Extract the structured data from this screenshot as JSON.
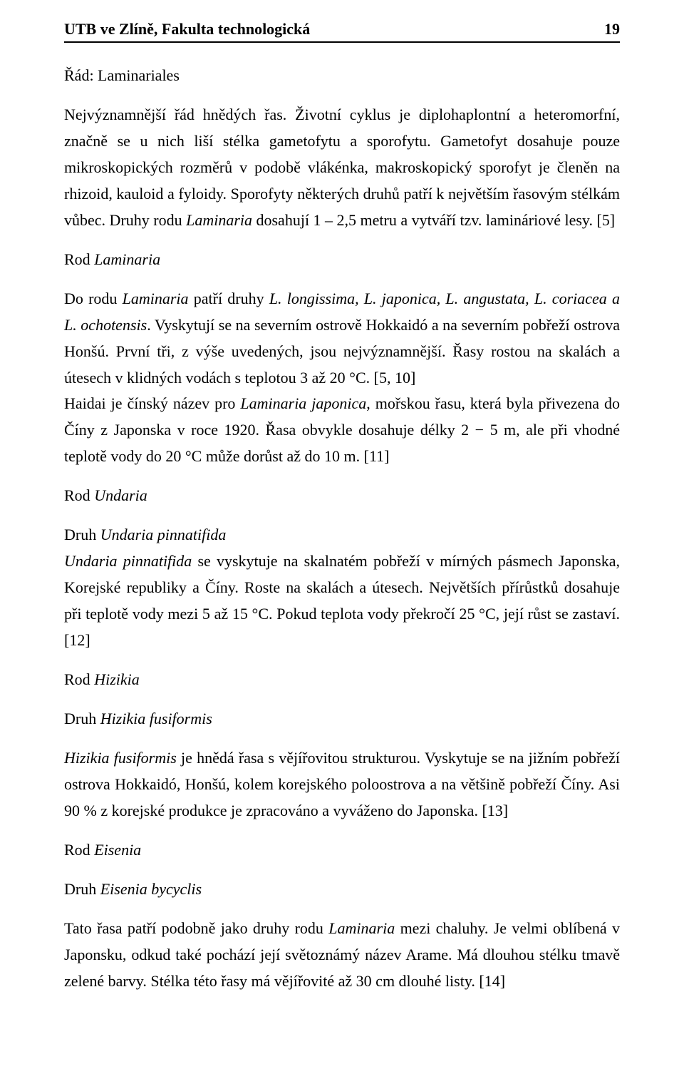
{
  "header": {
    "title": "UTB ve Zlíně, Fakulta technologická",
    "page": "19"
  },
  "p1": "Řád: Laminariales",
  "p2_a": "Nejvýznamnější řád hnědých řas. Životní cyklus je diplohaplontní a heteromorfní, značně se u nich liší stélka gametofytu a sporofytu. Gametofyt dosahuje pouze mikroskopických rozměrů v podobě vlákénka, makroskopický sporofyt je členěn na rhizoid, kauloid a fyloidy. Sporofyty některých druhů patří k největším řasovým stélkám vůbec. Druhy rodu ",
  "p2_i": "Laminaria",
  "p2_b": " dosahují 1 – 2,5 metru a vytváří tzv. lamináriové lesy. [5]",
  "p3_a": "Rod ",
  "p3_i": "Laminaria",
  "p4_a": "Do rodu ",
  "p4_i1": "Laminaria",
  "p4_b": "  patří druhy ",
  "p4_i2": "L. longissima, L. japonica, L. angustata, L. coriacea a L. ochotensis",
  "p4_c": ". Vyskytují se na severním ostrově Hokkaidó a na severním pobřeží ostrova Honšú. První tři, z výše uvedených, jsou nejvýznamnější. Řasy rostou na skalách a útesech v klidných vodách s teplotou 3 až 20 °C. [5, 10]",
  "p5_a": "Haidai je čínský název pro ",
  "p5_i": "Laminaria japonica",
  "p5_b": ", mořskou řasu, která byla přivezena do Číny z Japonska v roce 1920. Řasa obvykle dosahuje délky 2 − 5 m, ale při vhodné teplotě vody do 20 °C může dorůst až do 10 m. [11]",
  "p6_a": "Rod ",
  "p6_i": "Undaria",
  "p7_a": "Druh ",
  "p7_i": "Undaria pinnatifida",
  "p8_i": "Undaria pinnatifida",
  "p8_a": " se vyskytuje na skalnatém pobřeží v mírných pásmech Japonska, Korejské republiky a Číny. Roste na skalách a útesech. Největších přírůstků dosahuje při teplotě vody mezi 5 až 15 °C. Pokud teplota vody překročí 25 °C, její růst se zastaví. [12]",
  "p9_a": "Rod ",
  "p9_i": "Hizikia",
  "p10_a": "Druh ",
  "p10_i": "Hizikia fusiformis",
  "p11_i": "Hizikia fusiformis",
  "p11_a": " je hnědá řasa s vějířovitou strukturou. Vyskytuje se na jižním pobřeží ostrova Hokkaidó, Honšú, kolem korejského poloostrova a na většině pobřeží Číny. Asi 90 % z korejské produkce je zpracováno a vyváženo do Japonska. [13]",
  "p12_a": "Rod ",
  "p12_i": "Eisenia",
  "p13_a": "Druh ",
  "p13_i": "Eisenia bycyclis",
  "p14_a": "Tato řasa patří podobně jako druhy rodu ",
  "p14_i": "Laminaria",
  "p14_b": " mezi chaluhy. Je velmi oblíbená v Japonsku, odkud také pochází její světoznámý název Arame. Má dlouhou stélku tmavě zelené barvy. Stélka této řasy má vějířovité až 30 cm dlouhé listy. [14]"
}
